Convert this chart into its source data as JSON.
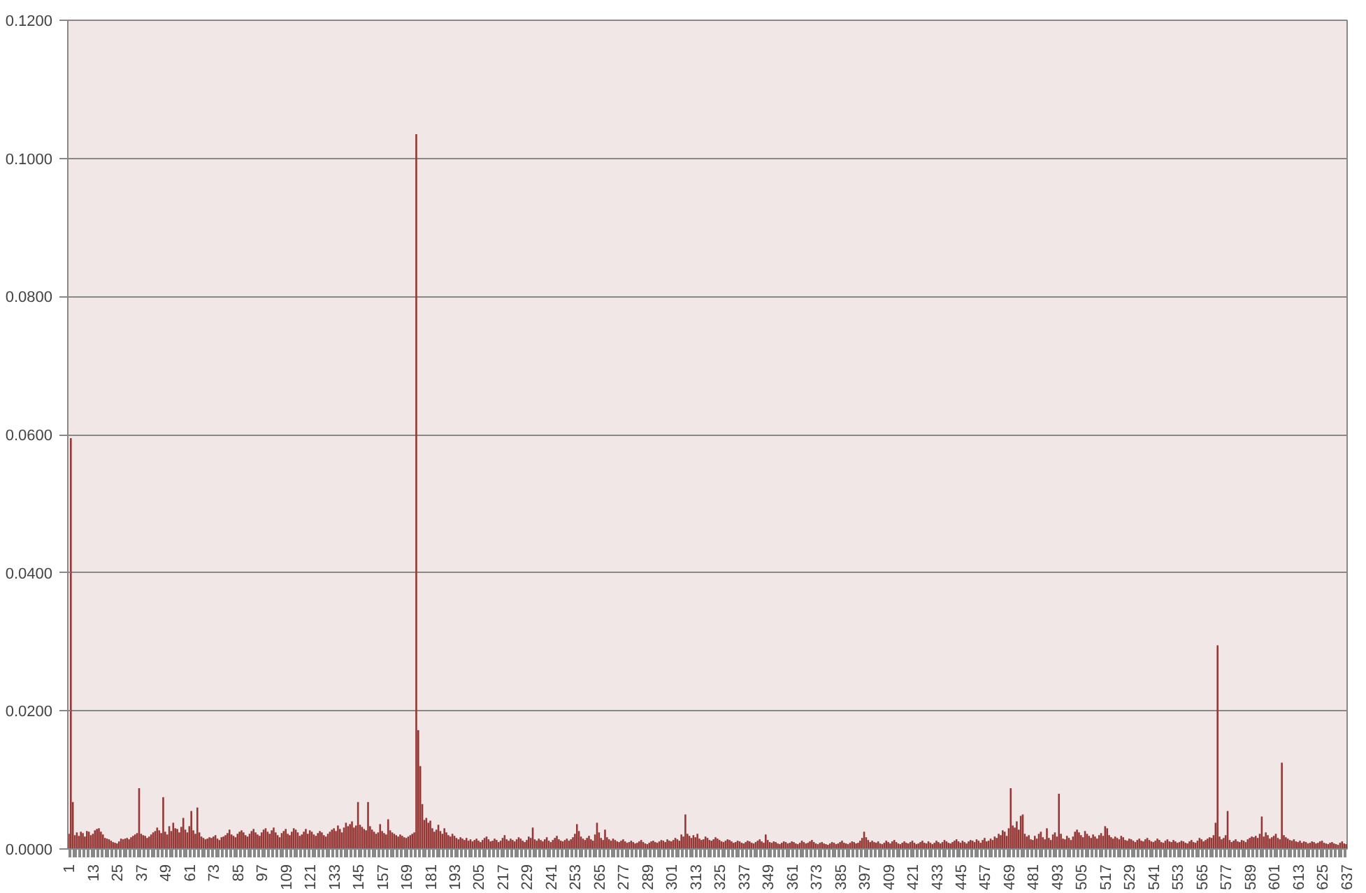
{
  "chart_data": {
    "type": "bar",
    "color": "#953735",
    "grid": "y",
    "ylim": [
      0,
      0.12
    ],
    "yticks": [
      {
        "value": 0,
        "label": "0.0000"
      },
      {
        "value": 0.02,
        "label": "0.0200"
      },
      {
        "value": 0.04,
        "label": "0.0400"
      },
      {
        "value": 0.06,
        "label": "0.0600"
      },
      {
        "value": 0.08,
        "label": "0.0800"
      },
      {
        "value": 0.1,
        "label": "0.1000"
      },
      {
        "value": 0.12,
        "label": "0.1200"
      }
    ],
    "categories": [
      "1",
      null,
      null,
      null,
      null,
      null,
      null,
      null,
      null,
      null,
      null,
      null,
      "13",
      null,
      null,
      null,
      null,
      null,
      null,
      null,
      null,
      null,
      null,
      null,
      "25",
      null,
      null,
      null,
      null,
      null,
      null,
      null,
      null,
      null,
      null,
      null,
      "37",
      null,
      null,
      null,
      null,
      null,
      null,
      null,
      null,
      null,
      null,
      null,
      "49",
      null,
      null,
      null,
      null,
      null,
      null,
      null,
      null,
      null,
      null,
      null,
      "61",
      null,
      null,
      null,
      null,
      null,
      null,
      null,
      null,
      null,
      null,
      null,
      "73",
      null,
      null,
      null,
      null,
      null,
      null,
      null,
      null,
      null,
      null,
      null,
      "85",
      null,
      null,
      null,
      null,
      null,
      null,
      null,
      null,
      null,
      null,
      null,
      "97",
      null,
      null,
      null,
      null,
      null,
      null,
      null,
      null,
      null,
      null,
      null,
      "109",
      null,
      null,
      null,
      null,
      null,
      null,
      null,
      null,
      null,
      null,
      null,
      "121",
      null,
      null,
      null,
      null,
      null,
      null,
      null,
      null,
      null,
      null,
      null,
      "133",
      null,
      null,
      null,
      null,
      null,
      null,
      null,
      null,
      null,
      null,
      null,
      "145",
      null,
      null,
      null,
      null,
      null,
      null,
      null,
      null,
      null,
      null,
      null,
      "157",
      null,
      null,
      null,
      null,
      null,
      null,
      null,
      null,
      null,
      null,
      null,
      "169",
      null,
      null,
      null,
      null,
      null,
      null,
      null,
      null,
      null,
      null,
      null,
      "181",
      null,
      null,
      null,
      null,
      null,
      null,
      null,
      null,
      null,
      null,
      null,
      "193",
      null,
      null,
      null,
      null,
      null,
      null,
      null,
      null,
      null,
      null,
      null,
      "205",
      null,
      null,
      null,
      null,
      null,
      null,
      null,
      null,
      null,
      null,
      null,
      "217",
      null,
      null,
      null,
      null,
      null,
      null,
      null,
      null,
      null,
      null,
      null,
      "229",
      null,
      null,
      null,
      null,
      null,
      null,
      null,
      null,
      null,
      null,
      null,
      "241",
      null,
      null,
      null,
      null,
      null,
      null,
      null,
      null,
      null,
      null,
      null,
      "253",
      null,
      null,
      null,
      null,
      null,
      null,
      null,
      null,
      null,
      null,
      null,
      "265",
      null,
      null,
      null,
      null,
      null,
      null,
      null,
      null,
      null,
      null,
      null,
      "277",
      null,
      null,
      null,
      null,
      null,
      null,
      null,
      null,
      null,
      null,
      null,
      "289",
      null,
      null,
      null,
      null,
      null,
      null,
      null,
      null,
      null,
      null,
      null,
      "301",
      null,
      null,
      null,
      null,
      null,
      null,
      null,
      null,
      null,
      null,
      null,
      "313",
      null,
      null,
      null,
      null,
      null,
      null,
      null,
      null,
      null,
      null,
      null,
      "325",
      null,
      null,
      null,
      null,
      null,
      null,
      null,
      null,
      null,
      null,
      null,
      "337",
      null,
      null,
      null,
      null,
      null,
      null,
      null,
      null,
      null,
      null,
      null,
      "349",
      null,
      null,
      null,
      null,
      null,
      null,
      null,
      null,
      null,
      null,
      null,
      "361",
      null,
      null,
      null,
      null,
      null,
      null,
      null,
      null,
      null,
      null,
      null,
      "373",
      null,
      null,
      null,
      null,
      null,
      null,
      null,
      null,
      null,
      null,
      null,
      "385",
      null,
      null,
      null,
      null,
      null,
      null,
      null,
      null,
      null,
      null,
      null,
      "397",
      null,
      null,
      null,
      null,
      null,
      null,
      null,
      null,
      null,
      null,
      null,
      "409",
      null,
      null,
      null,
      null,
      null,
      null,
      null,
      null,
      null,
      null,
      null,
      "421",
      null,
      null,
      null,
      null,
      null,
      null,
      null,
      null,
      null,
      null,
      null,
      "433",
      null,
      null,
      null,
      null,
      null,
      null,
      null,
      null,
      null,
      null,
      null,
      "445",
      null,
      null,
      null,
      null,
      null,
      null,
      null,
      null,
      null,
      null,
      null,
      "457",
      null,
      null,
      null,
      null,
      null,
      null,
      null,
      null,
      null,
      null,
      null,
      "469",
      null,
      null,
      null,
      null,
      null,
      null,
      null,
      null,
      null,
      null,
      null,
      "481",
      null,
      null,
      null,
      null,
      null,
      null,
      null,
      null,
      null,
      null,
      null,
      "493",
      null,
      null,
      null,
      null,
      null,
      null,
      null,
      null,
      null,
      null,
      null,
      "505",
      null,
      null,
      null,
      null,
      null,
      null,
      null,
      null,
      null,
      null,
      null,
      "517",
      null,
      null,
      null,
      null,
      null,
      null,
      null,
      null,
      null,
      null,
      null,
      "529",
      null,
      null,
      null,
      null,
      null,
      null,
      null,
      null,
      null,
      null,
      null,
      "541",
      null,
      null,
      null,
      null,
      null,
      null,
      null,
      null,
      null,
      null,
      null,
      "553",
      null,
      null,
      null,
      null,
      null,
      null,
      null,
      null,
      null,
      null,
      null,
      "565",
      null,
      null,
      null,
      null,
      null,
      null,
      null,
      null,
      null,
      null,
      null,
      "577",
      null,
      null,
      null,
      null,
      null,
      null,
      null,
      null,
      null,
      null,
      null,
      "589",
      null,
      null,
      null,
      null,
      null,
      null,
      null,
      null,
      null,
      null,
      null,
      "601",
      null,
      null,
      null,
      null,
      null,
      null,
      null,
      null,
      null,
      null,
      null,
      "613",
      null,
      null,
      null,
      null,
      null,
      null,
      null,
      null,
      null,
      null,
      null,
      "625",
      null,
      null,
      null,
      null,
      null,
      null,
      null,
      null,
      null,
      null,
      null,
      "637"
    ],
    "values": [
      0.0022,
      0.0595,
      0.0068,
      0.002,
      0.0024,
      0.0019,
      0.0025,
      0.0023,
      0.0018,
      0.0026,
      0.0025,
      0.002,
      0.0022,
      0.0027,
      0.0029,
      0.003,
      0.0025,
      0.0021,
      0.0016,
      0.0015,
      0.0014,
      0.0012,
      0.001,
      0.0009,
      0.0008,
      0.0011,
      0.0015,
      0.0014,
      0.0015,
      0.0016,
      0.0014,
      0.0017,
      0.0019,
      0.0021,
      0.0023,
      0.0088,
      0.0022,
      0.002,
      0.0019,
      0.0016,
      0.0018,
      0.0021,
      0.0024,
      0.0026,
      0.0031,
      0.0027,
      0.0023,
      0.0075,
      0.0025,
      0.0021,
      0.0033,
      0.0026,
      0.0038,
      0.003,
      0.0029,
      0.0024,
      0.0032,
      0.0045,
      0.0028,
      0.0024,
      0.0033,
      0.0055,
      0.0027,
      0.0022,
      0.006,
      0.0024,
      0.0018,
      0.0016,
      0.0014,
      0.0015,
      0.0017,
      0.0016,
      0.0018,
      0.002,
      0.0015,
      0.0013,
      0.0017,
      0.0018,
      0.002,
      0.0023,
      0.0028,
      0.0021,
      0.0019,
      0.0017,
      0.0022,
      0.0025,
      0.0027,
      0.0024,
      0.002,
      0.0018,
      0.0022,
      0.0026,
      0.0029,
      0.0024,
      0.0021,
      0.0019,
      0.0024,
      0.0028,
      0.003,
      0.0025,
      0.0022,
      0.0027,
      0.0031,
      0.0024,
      0.002,
      0.0017,
      0.0023,
      0.0026,
      0.0029,
      0.0022,
      0.002,
      0.0025,
      0.003,
      0.0028,
      0.0024,
      0.0019,
      0.0021,
      0.0025,
      0.0029,
      0.0022,
      0.0027,
      0.0025,
      0.0021,
      0.0019,
      0.0023,
      0.0026,
      0.0024,
      0.002,
      0.0018,
      0.0022,
      0.0025,
      0.0028,
      0.003,
      0.0026,
      0.0034,
      0.0029,
      0.0024,
      0.0031,
      0.0038,
      0.0033,
      0.0036,
      0.004,
      0.0031,
      0.0034,
      0.0068,
      0.0035,
      0.0032,
      0.0029,
      0.0027,
      0.0068,
      0.0033,
      0.0028,
      0.0025,
      0.0022,
      0.0024,
      0.0036,
      0.0026,
      0.0023,
      0.0021,
      0.0043,
      0.0027,
      0.0024,
      0.0022,
      0.002,
      0.0018,
      0.0021,
      0.0019,
      0.0017,
      0.0016,
      0.0018,
      0.002,
      0.0022,
      0.0024,
      0.1035,
      0.0172,
      0.012,
      0.0065,
      0.0042,
      0.0045,
      0.0038,
      0.0041,
      0.003,
      0.0025,
      0.0028,
      0.0035,
      0.0026,
      0.0022,
      0.003,
      0.0024,
      0.002,
      0.0018,
      0.0022,
      0.0019,
      0.0016,
      0.0014,
      0.0017,
      0.0015,
      0.0013,
      0.0016,
      0.0012,
      0.0014,
      0.0011,
      0.0013,
      0.0015,
      0.0012,
      0.001,
      0.0013,
      0.0016,
      0.0018,
      0.0014,
      0.0011,
      0.0012,
      0.0015,
      0.0013,
      0.001,
      0.0012,
      0.0016,
      0.002,
      0.0014,
      0.0012,
      0.0015,
      0.0013,
      0.0011,
      0.0014,
      0.0017,
      0.0015,
      0.0012,
      0.001,
      0.0013,
      0.0018,
      0.0016,
      0.0031,
      0.0014,
      0.0012,
      0.0015,
      0.0013,
      0.0011,
      0.0014,
      0.0017,
      0.0012,
      0.001,
      0.0013,
      0.0016,
      0.0019,
      0.0014,
      0.0012,
      0.0011,
      0.0013,
      0.0015,
      0.0012,
      0.0014,
      0.0017,
      0.0022,
      0.0036,
      0.0026,
      0.0018,
      0.0015,
      0.0013,
      0.0016,
      0.0019,
      0.0014,
      0.0012,
      0.0021,
      0.0038,
      0.0024,
      0.0016,
      0.0013,
      0.0028,
      0.0017,
      0.0014,
      0.0012,
      0.0015,
      0.0013,
      0.0011,
      0.001,
      0.0012,
      0.0014,
      0.0011,
      0.0009,
      0.001,
      0.0012,
      0.001,
      0.0008,
      0.0009,
      0.0011,
      0.0013,
      0.001,
      0.0008,
      0.0007,
      0.0009,
      0.0011,
      0.0012,
      0.001,
      0.0009,
      0.0011,
      0.0013,
      0.0012,
      0.001,
      0.0014,
      0.0012,
      0.0011,
      0.0013,
      0.0016,
      0.0014,
      0.0012,
      0.0021,
      0.0018,
      0.005,
      0.0022,
      0.0019,
      0.0016,
      0.002,
      0.0017,
      0.0022,
      0.0015,
      0.0013,
      0.0014,
      0.0018,
      0.0016,
      0.0013,
      0.0012,
      0.0014,
      0.0017,
      0.0015,
      0.0013,
      0.0011,
      0.001,
      0.0012,
      0.0014,
      0.0013,
      0.0011,
      0.0009,
      0.001,
      0.0012,
      0.0011,
      0.0009,
      0.0008,
      0.001,
      0.0012,
      0.0011,
      0.0009,
      0.0008,
      0.001,
      0.0012,
      0.0014,
      0.0011,
      0.0009,
      0.0021,
      0.0013,
      0.001,
      0.0009,
      0.0011,
      0.001,
      0.0008,
      0.0007,
      0.0009,
      0.0011,
      0.001,
      0.0008,
      0.0009,
      0.0011,
      0.001,
      0.0008,
      0.0007,
      0.0009,
      0.0012,
      0.001,
      0.0008,
      0.0009,
      0.0011,
      0.0013,
      0.001,
      0.0008,
      0.0007,
      0.0009,
      0.001,
      0.0008,
      0.0007,
      0.0006,
      0.0008,
      0.001,
      0.0009,
      0.0007,
      0.0008,
      0.001,
      0.0012,
      0.0009,
      0.0008,
      0.0007,
      0.0009,
      0.0011,
      0.001,
      0.0008,
      0.0009,
      0.0012,
      0.0016,
      0.0025,
      0.0017,
      0.0013,
      0.001,
      0.0012,
      0.001,
      0.0009,
      0.0011,
      0.0008,
      0.0007,
      0.0009,
      0.0012,
      0.001,
      0.0008,
      0.0011,
      0.0013,
      0.001,
      0.0008,
      0.0007,
      0.0009,
      0.0011,
      0.0009,
      0.0008,
      0.001,
      0.0012,
      0.0009,
      0.0007,
      0.0008,
      0.001,
      0.0012,
      0.0009,
      0.0008,
      0.0011,
      0.0009,
      0.0007,
      0.0009,
      0.0012,
      0.001,
      0.0008,
      0.001,
      0.0013,
      0.0011,
      0.0009,
      0.0008,
      0.001,
      0.0012,
      0.0014,
      0.0011,
      0.0009,
      0.0012,
      0.001,
      0.0008,
      0.0011,
      0.0013,
      0.0012,
      0.001,
      0.0014,
      0.0012,
      0.0009,
      0.0013,
      0.0016,
      0.0011,
      0.0012,
      0.0015,
      0.0013,
      0.0018,
      0.0016,
      0.0022,
      0.002,
      0.0027,
      0.0025,
      0.0019,
      0.003,
      0.0088,
      0.0034,
      0.0031,
      0.004,
      0.0028,
      0.0048,
      0.005,
      0.0022,
      0.0018,
      0.002,
      0.0014,
      0.0013,
      0.0019,
      0.0015,
      0.0022,
      0.0025,
      0.0017,
      0.0014,
      0.003,
      0.0016,
      0.0013,
      0.0021,
      0.0024,
      0.0018,
      0.008,
      0.0022,
      0.0015,
      0.0014,
      0.0019,
      0.0016,
      0.0013,
      0.0018,
      0.0025,
      0.0028,
      0.0024,
      0.002,
      0.0017,
      0.0026,
      0.0022,
      0.0019,
      0.0016,
      0.0021,
      0.0018,
      0.0015,
      0.002,
      0.0023,
      0.0019,
      0.0033,
      0.003,
      0.002,
      0.0017,
      0.0015,
      0.0018,
      0.0016,
      0.0014,
      0.0019,
      0.0017,
      0.0013,
      0.0012,
      0.0015,
      0.0014,
      0.0012,
      0.001,
      0.0013,
      0.0015,
      0.0012,
      0.0011,
      0.0014,
      0.0016,
      0.0013,
      0.0011,
      0.001,
      0.0012,
      0.0015,
      0.0013,
      0.001,
      0.0009,
      0.0012,
      0.0014,
      0.0011,
      0.001,
      0.0013,
      0.0011,
      0.0009,
      0.001,
      0.0012,
      0.0011,
      0.0009,
      0.0008,
      0.0011,
      0.0013,
      0.001,
      0.0009,
      0.0012,
      0.0016,
      0.0014,
      0.0011,
      0.0013,
      0.0015,
      0.0017,
      0.0016,
      0.002,
      0.0038,
      0.0295,
      0.0018,
      0.0014,
      0.0016,
      0.002,
      0.0055,
      0.0013,
      0.001,
      0.0012,
      0.0014,
      0.0011,
      0.001,
      0.0013,
      0.0012,
      0.001,
      0.0014,
      0.0016,
      0.0018,
      0.0017,
      0.0019,
      0.0016,
      0.0022,
      0.0047,
      0.0018,
      0.0024,
      0.002,
      0.0015,
      0.0017,
      0.0019,
      0.0022,
      0.0016,
      0.0014,
      0.0125,
      0.002,
      0.0017,
      0.0015,
      0.0013,
      0.0012,
      0.0014,
      0.0011,
      0.001,
      0.0012,
      0.0009,
      0.0011,
      0.001,
      0.0008,
      0.0009,
      0.0011,
      0.001,
      0.0008,
      0.0009,
      0.0011,
      0.0012,
      0.0009,
      0.0008,
      0.0007,
      0.0009,
      0.001,
      0.0008,
      0.0007,
      0.0006,
      0.0009,
      0.0011,
      0.0008,
      0.0007
    ]
  }
}
